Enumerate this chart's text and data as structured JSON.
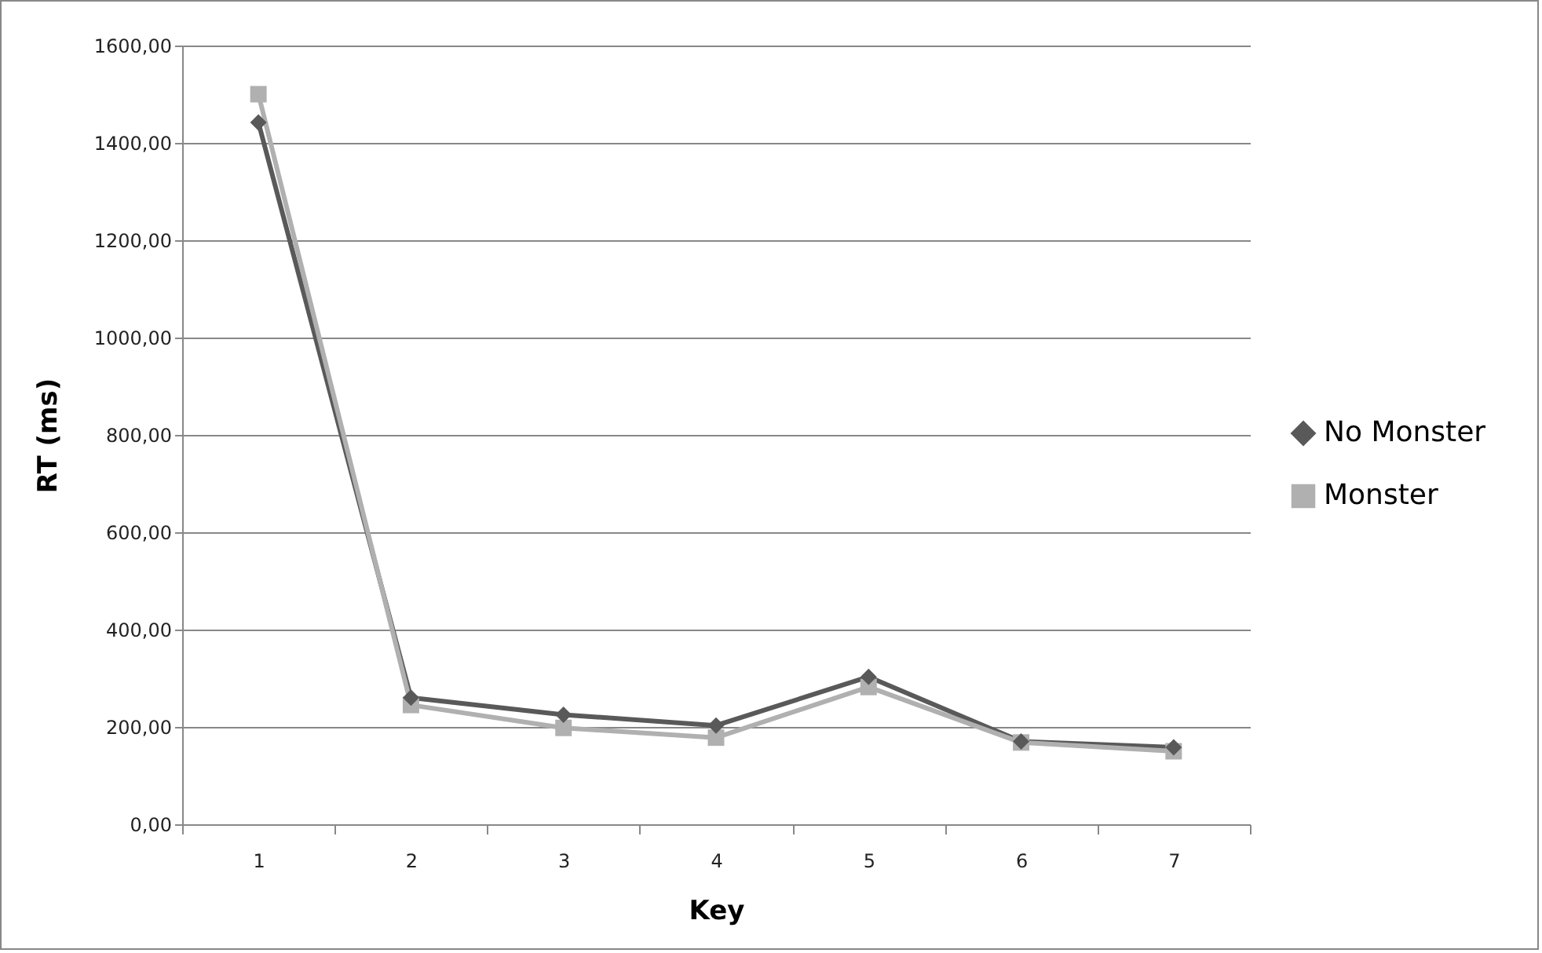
{
  "chart_data": {
    "type": "line",
    "xlabel": "Key",
    "ylabel": "RT (ms)",
    "categories": [
      "1",
      "2",
      "3",
      "4",
      "5",
      "6",
      "7"
    ],
    "series": [
      {
        "name": "No Monster",
        "color": "#595959",
        "marker": "diamond",
        "values": [
          1442,
          260,
          225,
          203,
          303,
          170,
          158
        ]
      },
      {
        "name": "Monster",
        "color": "#b0b0b0",
        "marker": "square",
        "values": [
          1500,
          245,
          198,
          178,
          282,
          168,
          150
        ]
      }
    ],
    "ylim": [
      0,
      1600
    ],
    "yticks": [
      {
        "value": 0,
        "label": "0,00"
      },
      {
        "value": 200,
        "label": "200,00"
      },
      {
        "value": 400,
        "label": "400,00"
      },
      {
        "value": 600,
        "label": "600,00"
      },
      {
        "value": 800,
        "label": "800,00"
      },
      {
        "value": 1000,
        "label": "1000,00"
      },
      {
        "value": 1200,
        "label": "1200,00"
      },
      {
        "value": 1400,
        "label": "1400,00"
      },
      {
        "value": 1600,
        "label": "1600,00"
      }
    ],
    "grid": "y",
    "legend": "right",
    "line_style": "solid"
  }
}
